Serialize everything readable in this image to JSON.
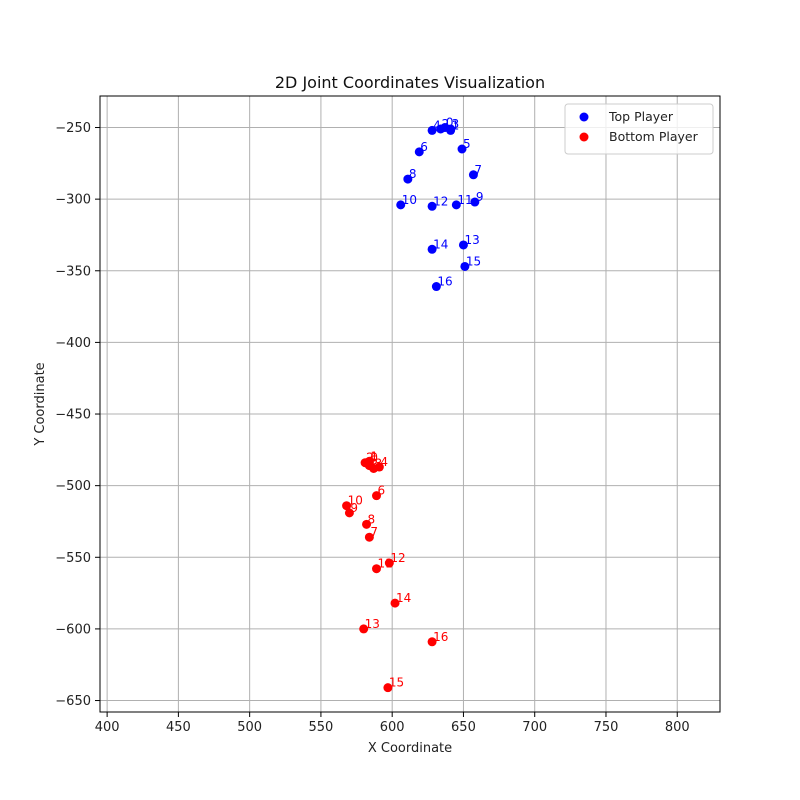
{
  "chart_data": {
    "type": "scatter",
    "title": "2D Joint Coordinates Visualization",
    "xlabel": "X Coordinate",
    "ylabel": "Y Coordinate",
    "xlim": [
      395,
      830
    ],
    "ylim": [
      -658,
      -228
    ],
    "xticks": [
      400,
      450,
      500,
      550,
      600,
      650,
      700,
      750,
      800
    ],
    "yticks": [
      -250,
      -300,
      -350,
      -400,
      -450,
      -500,
      -550,
      -600,
      -650
    ],
    "grid": true,
    "legend": "top-right",
    "series": [
      {
        "name": "Top Player",
        "color": "#0000ff",
        "points": [
          {
            "label": "0",
            "x": 637,
            "y": -250
          },
          {
            "label": "1",
            "x": 641,
            "y": -252
          },
          {
            "label": "2",
            "x": 634,
            "y": -251
          },
          {
            "label": "3",
            "x": 641,
            "y": -251
          },
          {
            "label": "4",
            "x": 628,
            "y": -252
          },
          {
            "label": "5",
            "x": 649,
            "y": -265
          },
          {
            "label": "6",
            "x": 619,
            "y": -267
          },
          {
            "label": "7",
            "x": 657,
            "y": -283
          },
          {
            "label": "8",
            "x": 611,
            "y": -286
          },
          {
            "label": "9",
            "x": 658,
            "y": -302
          },
          {
            "label": "10",
            "x": 606,
            "y": -304
          },
          {
            "label": "11",
            "x": 645,
            "y": -304
          },
          {
            "label": "12",
            "x": 628,
            "y": -305
          },
          {
            "label": "13",
            "x": 650,
            "y": -332
          },
          {
            "label": "14",
            "x": 628,
            "y": -335
          },
          {
            "label": "15",
            "x": 651,
            "y": -347
          },
          {
            "label": "16",
            "x": 631,
            "y": -361
          }
        ]
      },
      {
        "name": "Bottom Player",
        "color": "#ff0000",
        "points": [
          {
            "label": "0",
            "x": 584,
            "y": -484
          },
          {
            "label": "1",
            "x": 584,
            "y": -483
          },
          {
            "label": "2",
            "x": 581,
            "y": -484
          },
          {
            "label": "3",
            "x": 587,
            "y": -488
          },
          {
            "label": "4",
            "x": 591,
            "y": -487
          },
          {
            "label": "5",
            "x": 584,
            "y": -486
          },
          {
            "label": "6",
            "x": 589,
            "y": -507
          },
          {
            "label": "7",
            "x": 584,
            "y": -536
          },
          {
            "label": "8",
            "x": 582,
            "y": -527
          },
          {
            "label": "9",
            "x": 570,
            "y": -519
          },
          {
            "label": "10",
            "x": 568,
            "y": -514
          },
          {
            "label": "11",
            "x": 589,
            "y": -558
          },
          {
            "label": "12",
            "x": 598,
            "y": -554
          },
          {
            "label": "13",
            "x": 580,
            "y": -600
          },
          {
            "label": "14",
            "x": 602,
            "y": -582
          },
          {
            "label": "15",
            "x": 597,
            "y": -641
          },
          {
            "label": "16",
            "x": 628,
            "y": -609
          }
        ]
      }
    ]
  }
}
